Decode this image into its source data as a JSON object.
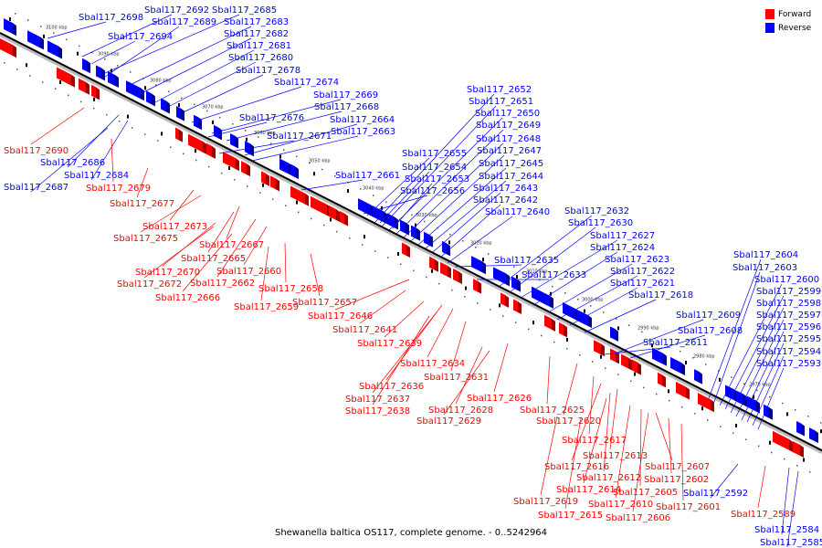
{
  "caption": "Shewanella baltica OS117, complete genome. - 0..5242964",
  "legend": {
    "forward": {
      "label": "Forward",
      "color": "#ff0000"
    },
    "reverse": {
      "label": "Reverse",
      "color": "#0000ff"
    }
  },
  "colors": {
    "forward": "#ff0000",
    "reverse": "#0000ff",
    "backbone": "#000000"
  },
  "ticks": [
    "3100 kbp",
    "3090 kbp",
    "3080 kbp",
    "3070 kbp",
    "3060 kbp",
    "3050 kbp",
    "3040 kbp",
    "3030 kbp",
    "3020 kbp",
    "3010 kbp",
    "3000 kbp",
    "2990 kbp",
    "2980 kbp",
    "2970 kbp"
  ],
  "reverse_genes": [
    "Sbal117_2698",
    "Sbal117_2692",
    "Sbal117_2685",
    "Sbal117_2689",
    "Sbal117_2683",
    "Sbal117_2694",
    "Sbal117_2682",
    "Sbal117_2681",
    "Sbal117_2680",
    "Sbal117_2678",
    "Sbal117_2674",
    "Sbal117_2669",
    "Sbal117_2668",
    "Sbal117_2676",
    "Sbal117_2664",
    "Sbal117_2671",
    "Sbal117_2663",
    "Sbal117_2686",
    "Sbal117_2684",
    "Sbal117_2687",
    "Sbal117_2652",
    "Sbal117_2651",
    "Sbal117_2650",
    "Sbal117_2649",
    "Sbal117_2648",
    "Sbal117_2655",
    "Sbal117_2647",
    "Sbal117_2654",
    "Sbal117_2645",
    "Sbal117_2653",
    "Sbal117_2661",
    "Sbal117_2644",
    "Sbal117_2656",
    "Sbal117_2643",
    "Sbal117_2642",
    "Sbal117_2640",
    "Sbal117_2632",
    "Sbal117_2630",
    "Sbal117_2627",
    "Sbal117_2624",
    "Sbal117_2623",
    "Sbal117_2635",
    "Sbal117_2622",
    "Sbal117_2633",
    "Sbal117_2621",
    "Sbal117_2618",
    "Sbal117_2609",
    "Sbal117_2608",
    "Sbal117_2611",
    "Sbal117_2604",
    "Sbal117_2603",
    "Sbal117_2600",
    "Sbal117_2599",
    "Sbal117_2598",
    "Sbal117_2597",
    "Sbal117_2596",
    "Sbal117_2595",
    "Sbal117_2594",
    "Sbal117_2593",
    "Sbal117_2592",
    "Sbal117_2584",
    "Sbal117_2585"
  ],
  "forward_genes": [
    "Sbal117_2690",
    "Sbal117_2679",
    "Sbal117_2677",
    "Sbal117_2673",
    "Sbal117_2675",
    "Sbal117_2667",
    "Sbal117_2665",
    "Sbal117_2670",
    "Sbal117_2660",
    "Sbal117_2672",
    "Sbal117_2662",
    "Sbal117_2666",
    "Sbal117_2658",
    "Sbal117_2659",
    "Sbal117_2657",
    "Sbal117_2646",
    "Sbal117_2641",
    "Sbal117_2639",
    "Sbal117_2634",
    "Sbal117_2631",
    "Sbal117_2636",
    "Sbal117_2637",
    "Sbal117_2638",
    "Sbal117_2626",
    "Sbal117_2628",
    "Sbal117_2625",
    "Sbal117_2629",
    "Sbal117_2620",
    "Sbal117_2617",
    "Sbal117_2613",
    "Sbal117_2616",
    "Sbal117_2607",
    "Sbal117_2612",
    "Sbal117_2602",
    "Sbal117_2614",
    "Sbal117_2605",
    "Sbal117_2619",
    "Sbal117_2610",
    "Sbal117_2601",
    "Sbal117_2615",
    "Sbal117_2606",
    "Sbal117_2589"
  ]
}
